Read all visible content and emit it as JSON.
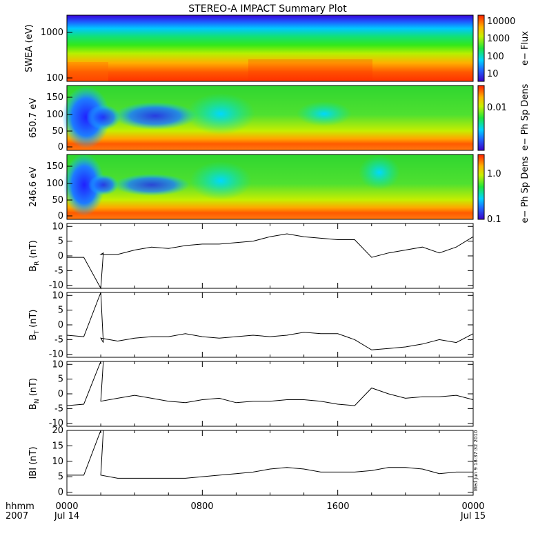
{
  "chart_data": {
    "type": "line",
    "title": "STEREO-A IMPACT Summary Plot",
    "colors": {
      "line": "#000000",
      "axis": "#000000",
      "background": "#ffffff"
    },
    "spectrograms": [
      {
        "id": "swea",
        "ylabel": "SWEA (eV)",
        "y_scale": "log",
        "ylim": [
          100,
          2000
        ],
        "yticks": [
          "1000",
          "100"
        ],
        "colorbar_label": "e− Flux",
        "colorbar_scale": "log",
        "colorbar_ticks": [
          "10000",
          "1000",
          "100",
          "10"
        ]
      },
      {
        "id": "pad650",
        "ylabel": "650.7 eV",
        "ylim": [
          -10,
          180
        ],
        "yticks": [
          "150",
          "100",
          "50",
          "0"
        ],
        "colorbar_label": "e− Ph Sp Dens",
        "colorbar_scale": "log",
        "colorbar_ticks": [
          "0.01"
        ]
      },
      {
        "id": "pad246",
        "ylabel": "246.6 eV",
        "ylim": [
          -10,
          180
        ],
        "yticks": [
          "150",
          "100",
          "50",
          "0"
        ],
        "colorbar_label": "e− Ph Sp Dens",
        "colorbar_scale": "log",
        "colorbar_ticks": [
          "1.0",
          "0.1"
        ]
      }
    ],
    "x": [
      "0000",
      "0100",
      "0200",
      "0300",
      "0400",
      "0500",
      "0600",
      "0700",
      "0800",
      "0900",
      "1000",
      "1100",
      "1200",
      "1300",
      "1400",
      "1500",
      "1600",
      "1700",
      "1800",
      "1900",
      "2000",
      "2100",
      "2200",
      "2300",
      "0000"
    ],
    "xlim_hours": [
      0,
      24
    ],
    "x_ticks": [
      {
        "hour": 0,
        "label": "0000",
        "sublabel": "Jul 14"
      },
      {
        "hour": 8,
        "label": "0800",
        "sublabel": ""
      },
      {
        "hour": 16,
        "label": "1600",
        "sublabel": ""
      },
      {
        "hour": 24,
        "label": "0000",
        "sublabel": "Jul 15"
      }
    ],
    "x_axis_label": "hhmm",
    "x_axis_year": "2007",
    "series": [
      {
        "name": "BR",
        "ylabel_main": "B",
        "ylabel_sub": "R",
        "ylabel_unit": " (nT)",
        "ylim": [
          -11,
          11
        ],
        "yticks": [
          10,
          5,
          0,
          -5,
          -10
        ],
        "values": [
          -0.5,
          -0.5,
          0.5,
          0.5,
          2,
          3,
          2.5,
          3.5,
          4,
          4,
          4.5,
          5,
          6.5,
          7.5,
          6.5,
          6,
          5.5,
          5.5,
          -0.5,
          1,
          2,
          3,
          1,
          3,
          6.5
        ],
        "spikes": [
          [
            2.0,
            -11
          ],
          [
            2.15,
            1.0
          ]
        ]
      },
      {
        "name": "BT",
        "ylabel_main": "B",
        "ylabel_sub": "T",
        "ylabel_unit": " (nT)",
        "ylim": [
          -11,
          11
        ],
        "yticks": [
          10,
          5,
          0,
          -5,
          -10
        ],
        "values": [
          -3.5,
          -4,
          -4.5,
          -5.5,
          -4.5,
          -4,
          -4,
          -3,
          -4,
          -4.5,
          -4,
          -3.5,
          -4,
          -3.5,
          -2.5,
          -3,
          -3,
          -5,
          -8.5,
          -8,
          -7.5,
          -6.5,
          -5,
          -6,
          -3
        ],
        "spikes": [
          [
            2.0,
            11
          ],
          [
            2.15,
            -6
          ]
        ]
      },
      {
        "name": "BN",
        "ylabel_main": "B",
        "ylabel_sub": "N",
        "ylabel_unit": " (nT)",
        "ylim": [
          -11,
          11
        ],
        "yticks": [
          10,
          5,
          0,
          -5,
          -10
        ],
        "values": [
          -4,
          -3.5,
          -2.5,
          -1.5,
          -0.5,
          -1.5,
          -2.5,
          -3,
          -2,
          -1.5,
          -3,
          -2.5,
          -2.5,
          -2,
          -2,
          -2.5,
          -3.5,
          -4,
          2,
          0,
          -1.5,
          -1,
          -1,
          -0.5,
          -2
        ],
        "spikes": [
          [
            2.0,
            11
          ],
          [
            2.15,
            11
          ]
        ]
      },
      {
        "name": "|B|",
        "ylabel_main": "IBI",
        "ylabel_sub": "",
        "ylabel_unit": " (nT)",
        "ylim": [
          -1,
          20
        ],
        "yticks": [
          20,
          15,
          10,
          5,
          0
        ],
        "values": [
          5.5,
          5.5,
          5.5,
          4.5,
          4.5,
          4.5,
          4.5,
          4.5,
          5,
          5.5,
          6,
          6.5,
          7.5,
          8,
          7.5,
          6.5,
          6.5,
          6.5,
          7,
          8,
          8,
          7.5,
          6,
          6.5,
          6.5
        ],
        "spikes": [
          [
            2.0,
            20
          ],
          [
            2.15,
            20
          ]
        ]
      }
    ],
    "timestamp": "Wed Jun 9 18:37:32 2010"
  }
}
